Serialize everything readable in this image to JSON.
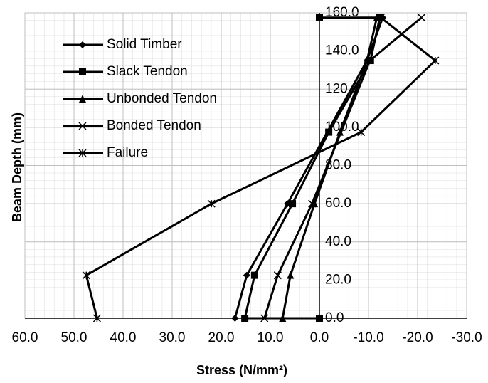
{
  "chart_data": {
    "type": "scatter-line",
    "xlabel": "Stress (N/mm²)",
    "ylabel": "Beam Depth (mm)",
    "xlim": [
      60,
      -30
    ],
    "xticks": [
      {
        "value": 60,
        "label": "60.0"
      },
      {
        "value": 50,
        "label": "50.0"
      },
      {
        "value": 40,
        "label": "40.0"
      },
      {
        "value": 30,
        "label": "30.0"
      },
      {
        "value": 20,
        "label": "20.0"
      },
      {
        "value": 10,
        "label": "10.0"
      },
      {
        "value": 0,
        "label": "0.0"
      },
      {
        "value": -10,
        "label": "-10.0"
      },
      {
        "value": -20,
        "label": "-20.0"
      },
      {
        "value": -30,
        "label": "-30.0"
      }
    ],
    "ylim": [
      0,
      160
    ],
    "yticks": [
      {
        "value": 0,
        "label": "0.0"
      },
      {
        "value": 20,
        "label": "20.0"
      },
      {
        "value": 40,
        "label": "40.0"
      },
      {
        "value": 60,
        "label": "60.0"
      },
      {
        "value": 80,
        "label": "80.0"
      },
      {
        "value": 100,
        "label": "100.0"
      },
      {
        "value": 120,
        "label": "120.0"
      },
      {
        "value": 140,
        "label": "140.0"
      },
      {
        "value": 160,
        "label": "160.0"
      }
    ],
    "grid": true,
    "legend": "upper left",
    "series": [
      {
        "name": "Solid Timber",
        "color": "#000000",
        "marker": "diamond",
        "x": [
          17.2,
          14.8,
          6.5,
          -9.7,
          -12.9
        ],
        "y": [
          0,
          22.5,
          60,
          135,
          157.5
        ]
      },
      {
        "name": "Slack Tendon",
        "color": "#000000",
        "marker": "square",
        "x": [
          0,
          15.2,
          13.2,
          5.5,
          -1.9,
          -10.4,
          -12.3,
          0
        ],
        "y": [
          0,
          0,
          22.5,
          60,
          97.5,
          135,
          157.5,
          157.5
        ]
      },
      {
        "name": "Unbonded Tendon",
        "color": "#000000",
        "marker": "triangle",
        "x": [
          7.5,
          5.9,
          1.0,
          -4.2,
          -9.7,
          -11.7
        ],
        "y": [
          0,
          22.5,
          60,
          97.5,
          135,
          157.5
        ]
      },
      {
        "name": "Bonded Tendon",
        "color": "#000000",
        "marker": "x",
        "x": [
          11.2,
          8.5,
          1.5,
          -10.3,
          -20.8
        ],
        "y": [
          0,
          22.5,
          60,
          135,
          157.5
        ]
      },
      {
        "name": "Failure",
        "color": "#000000",
        "marker": "star",
        "x": [
          45.3,
          47.5,
          22.0,
          -8.5,
          -23.6,
          -12.5
        ],
        "y": [
          0,
          22.5,
          60,
          97.5,
          135,
          157.5
        ]
      }
    ]
  }
}
